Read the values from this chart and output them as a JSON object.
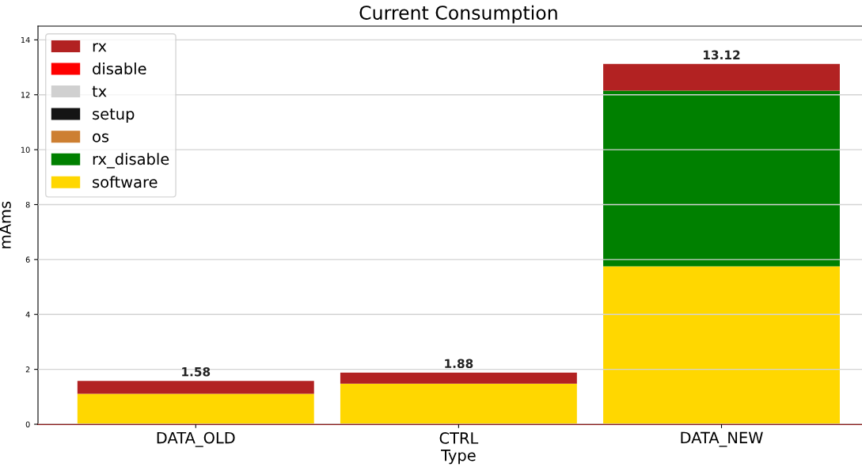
{
  "chart_data": {
    "type": "bar",
    "title": "Current Consumption",
    "xlabel": "Type",
    "ylabel": "mAms",
    "categories": [
      "DATA_OLD",
      "CTRL",
      "DATA_NEW"
    ],
    "stacked": true,
    "series": [
      {
        "name": "software",
        "color": "#ffd700",
        "values": [
          1.11,
          1.48,
          5.75
        ]
      },
      {
        "name": "rx_disable",
        "color": "#008000",
        "values": [
          0,
          0,
          6.4
        ]
      },
      {
        "name": "os",
        "color": "#cd7f32",
        "values": [
          0,
          0,
          0
        ]
      },
      {
        "name": "setup",
        "color": "#141414",
        "values": [
          0,
          0,
          0
        ]
      },
      {
        "name": "tx",
        "color": "#d0d0d0",
        "values": [
          0,
          0,
          0
        ]
      },
      {
        "name": "disable",
        "color": "#ff0000",
        "values": [
          0,
          0,
          0
        ]
      },
      {
        "name": "rx",
        "color": "#b22222",
        "values": [
          0.47,
          0.4,
          0.97
        ]
      }
    ],
    "totals": [
      "1.58",
      "1.88",
      "13.12"
    ],
    "ylim": [
      0,
      14.5
    ],
    "yticks": [
      0,
      2,
      4,
      6,
      8,
      10,
      12,
      14
    ],
    "grid": "y",
    "legend": "top left"
  }
}
